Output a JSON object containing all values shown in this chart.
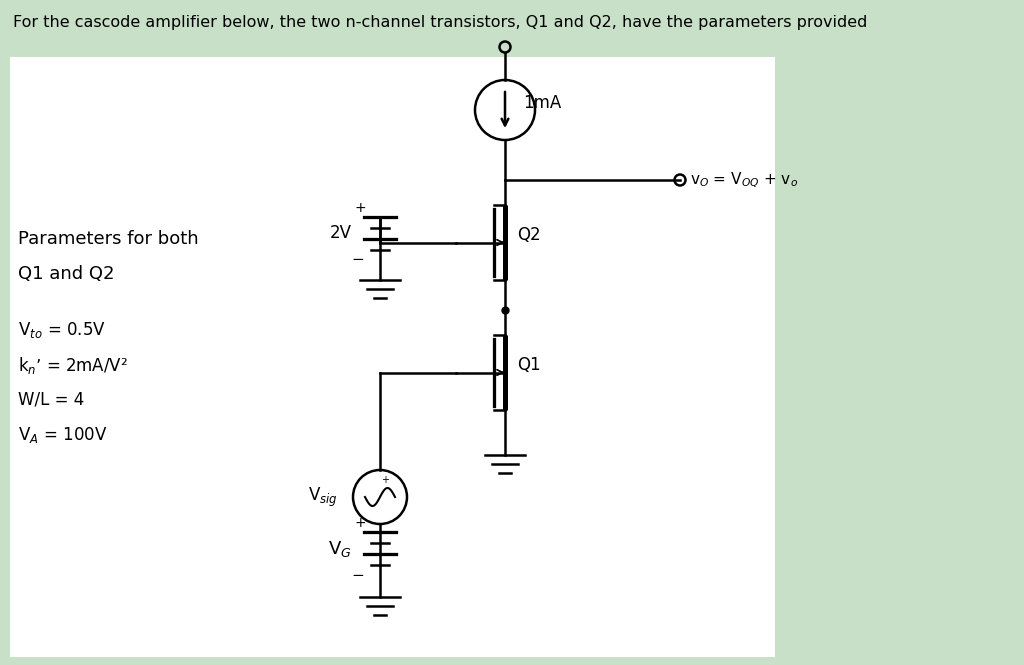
{
  "bg_outer": "#c8dfc8",
  "bg_inner": "#ffffff",
  "title_text": "For the cascode amplifier below, the two n-channel transistors, Q1 and Q2, have the parameters provided",
  "title_fontsize": 11.5,
  "params_line1": "Parameters for both",
  "params_line2": "Q1 and Q2",
  "param1": "V$_{to}$ = 0.5V",
  "param2": "k$_{n}$’ = 2mA/V²",
  "param3": "W/L = 4",
  "param4": "V$_A$ = 100V",
  "label_1mA": "1mA",
  "label_Q2": "Q2",
  "label_Q1": "Q1",
  "label_2V": "2V",
  "label_Vsig": "V$_{sig}$",
  "label_VG": "V$_G$",
  "label_Vo": "v$_O$ = V$_{OQ}$ + v$_o$"
}
